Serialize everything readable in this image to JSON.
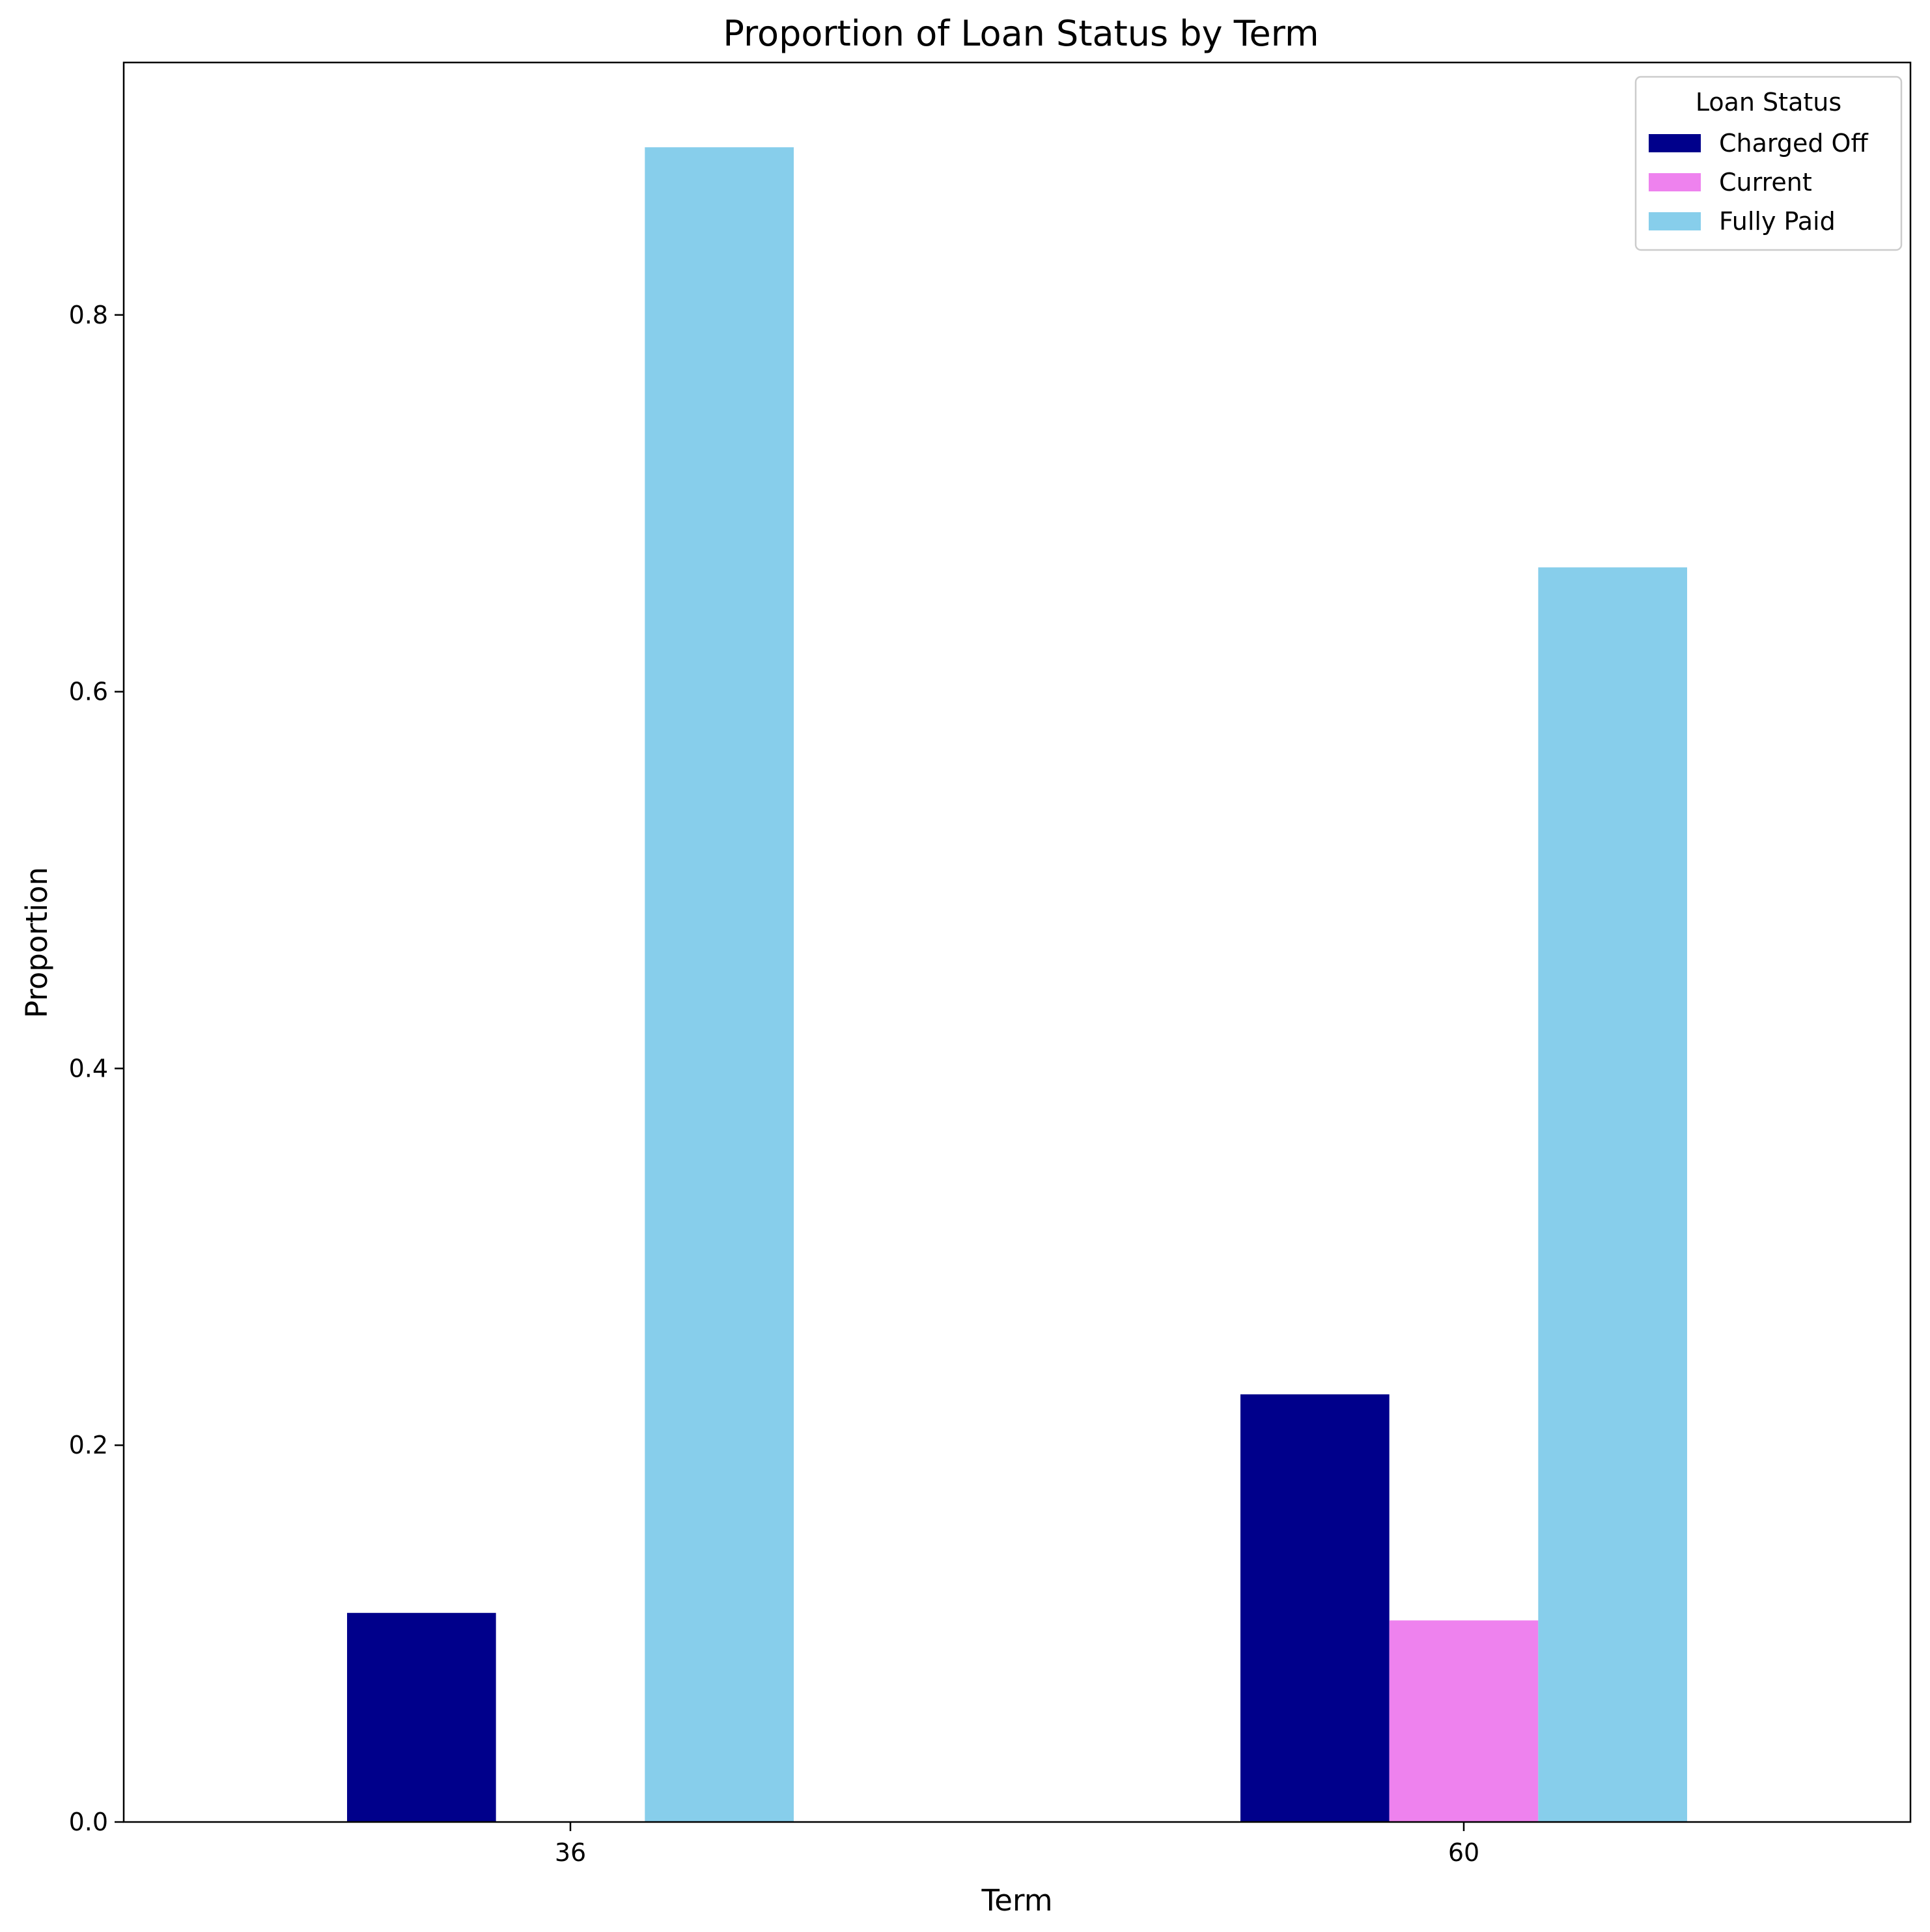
{
  "chart_data": {
    "type": "bar",
    "title": "Proportion of Loan Status by Term",
    "xlabel": "Term",
    "ylabel": "Proportion",
    "categories": [
      "36",
      "60"
    ],
    "series": [
      {
        "name": "Charged Off",
        "color": "#00008b",
        "values": [
          0.111,
          0.227
        ]
      },
      {
        "name": "Current",
        "color": "#ee82ee",
        "values": [
          0.0,
          0.107
        ]
      },
      {
        "name": "Fully Paid",
        "color": "#87ceeb",
        "values": [
          0.889,
          0.666
        ]
      }
    ],
    "ylim": [
      0,
      0.934
    ],
    "yticks": [
      0.0,
      0.2,
      0.4,
      0.6,
      0.8
    ],
    "ytick_labels": [
      "0.0",
      "0.2",
      "0.4",
      "0.6",
      "0.8"
    ],
    "grid": false,
    "legend": {
      "title": "Loan Status",
      "position": "top-right"
    }
  }
}
